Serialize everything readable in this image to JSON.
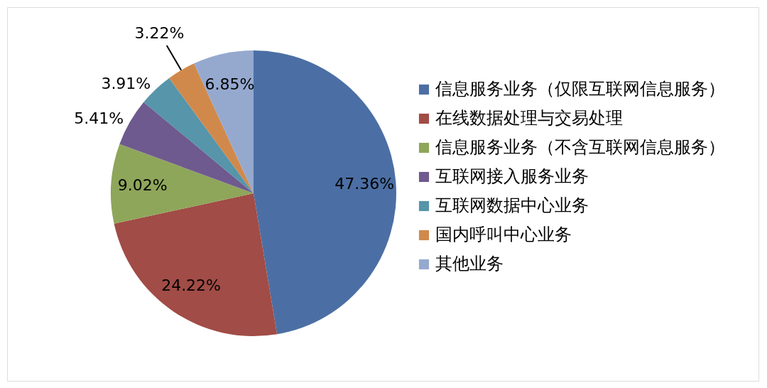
{
  "chart_data": {
    "type": "pie",
    "categories": [
      "信息服务业务（仅限互联网信息服务）",
      "在线数据处理与交易处理",
      "信息服务业务（不含互联网信息服务）",
      "互联网接入服务业务",
      "互联网数据中心业务",
      "国内呼叫中心业务",
      "其他业务"
    ],
    "values": [
      47.36,
      24.22,
      9.02,
      5.41,
      3.91,
      3.22,
      6.85
    ],
    "colors": [
      "#4b6fa4",
      "#a14c46",
      "#8ea65a",
      "#6e5a8e",
      "#5695aa",
      "#d0894b",
      "#95a9cf"
    ],
    "value_labels": [
      "47.36%",
      "24.22%",
      "9.02%",
      "5.41%",
      "3.91%",
      "3.22%",
      "6.85%"
    ],
    "legend": "right"
  }
}
